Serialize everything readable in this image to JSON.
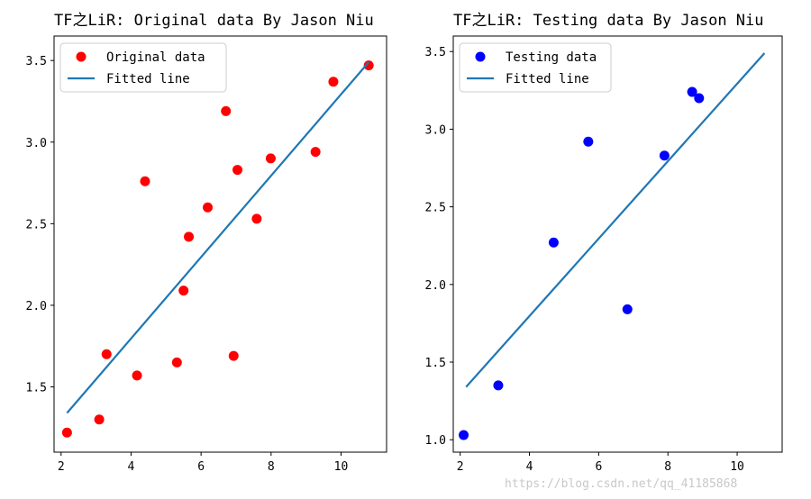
{
  "chart_data": [
    {
      "type": "scatter",
      "title": "TF之LiR: Original data By Jason Niu",
      "xlabel": "",
      "ylabel": "",
      "xlim": [
        1.8,
        11.3
      ],
      "ylim": [
        1.1,
        3.65
      ],
      "xticks": [
        2,
        4,
        6,
        8,
        10
      ],
      "yticks": [
        1.5,
        2.0,
        2.5,
        3.0,
        3.5
      ],
      "xtick_labels": [
        "2",
        "4",
        "6",
        "8",
        "10"
      ],
      "ytick_labels": [
        "1.5",
        "2.0",
        "2.5",
        "3.0",
        "3.5"
      ],
      "legend_position": "upper-left",
      "series": [
        {
          "name": "Original data",
          "kind": "scatter",
          "color": "#ff0000",
          "x": [
            2.17,
            3.09,
            3.3,
            4.17,
            4.4,
            5.31,
            5.5,
            5.65,
            6.19,
            6.71,
            6.93,
            7.04,
            7.59,
            7.99,
            9.27,
            9.78,
            10.79
          ],
          "y": [
            1.22,
            1.3,
            1.7,
            1.57,
            2.76,
            1.65,
            2.09,
            2.42,
            2.6,
            3.19,
            1.69,
            2.83,
            2.53,
            2.9,
            2.94,
            3.37,
            3.47
          ]
        },
        {
          "name": "Fitted line",
          "kind": "line",
          "color": "#1f77b4",
          "x": [
            2.17,
            10.79
          ],
          "y": [
            1.34,
            3.49
          ]
        }
      ]
    },
    {
      "type": "scatter",
      "title": "TF之LiR: Testing data By Jason Niu",
      "xlabel": "",
      "ylabel": "",
      "xlim": [
        1.8,
        11.3
      ],
      "ylim": [
        0.92,
        3.6
      ],
      "xticks": [
        2,
        4,
        6,
        8,
        10
      ],
      "yticks": [
        1.0,
        1.5,
        2.0,
        2.5,
        3.0,
        3.5
      ],
      "xtick_labels": [
        "2",
        "4",
        "6",
        "8",
        "10"
      ],
      "ytick_labels": [
        "1.0",
        "1.5",
        "2.0",
        "2.5",
        "3.0",
        "3.5"
      ],
      "legend_position": "upper-left",
      "series": [
        {
          "name": "Testing data",
          "kind": "scatter",
          "color": "#0000ff",
          "x": [
            2.1,
            3.1,
            4.7,
            5.7,
            6.83,
            7.9,
            8.7,
            8.9
          ],
          "y": [
            1.03,
            1.35,
            2.27,
            2.92,
            1.84,
            2.83,
            3.24,
            3.2
          ]
        },
        {
          "name": "Fitted line",
          "kind": "line",
          "color": "#1f77b4",
          "x": [
            2.17,
            10.79
          ],
          "y": [
            1.34,
            3.49
          ]
        }
      ]
    }
  ],
  "watermark": "https://blog.csdn.net/qq_41185868"
}
